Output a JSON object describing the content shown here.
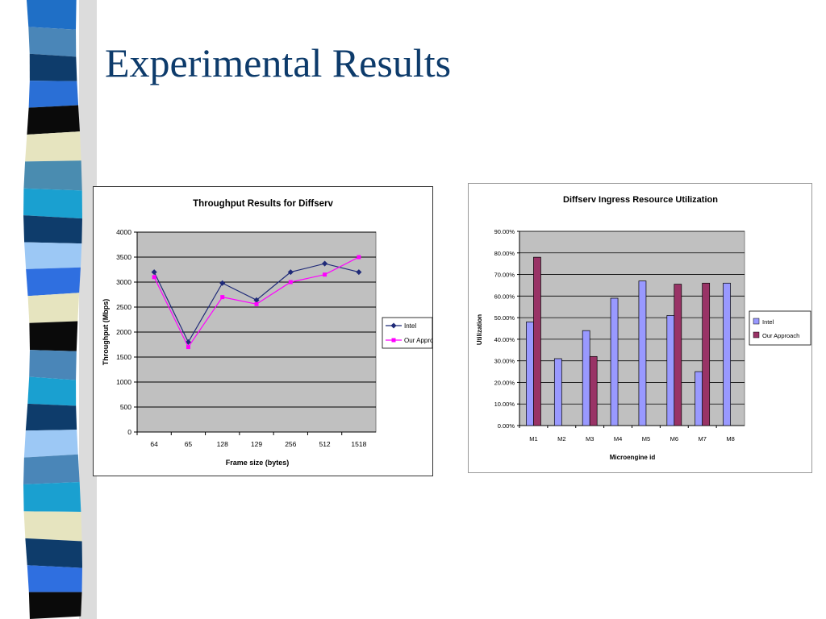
{
  "slide": {
    "title": "Experimental Results"
  },
  "stripe_colors": [
    "#1f6fc6",
    "#4a86b8",
    "#0e3c6b",
    "#2a6fd6",
    "#0a0a0a",
    "#e6e4bf",
    "#4a8cb0",
    "#1aa0d0",
    "#0e3c6b",
    "#9cc8f5",
    "#2f6fe0",
    "#e6e4bf",
    "#0a0a0a",
    "#4a86b8",
    "#1aa0d0",
    "#0e3c6b",
    "#9cc8f5",
    "#4a86b8",
    "#1aa0d0",
    "#e6e4bf",
    "#0e3c6b",
    "#2f6fe0",
    "#0a0a0a"
  ],
  "chart_data": [
    {
      "type": "line",
      "title": "Throughput Results for Diffserv",
      "xlabel": "Frame size (bytes)",
      "ylabel": "Throughput (Mbps)",
      "categories": [
        "64",
        "65",
        "128",
        "129",
        "256",
        "512",
        "1518"
      ],
      "ylim": [
        0,
        4000
      ],
      "yticks": [
        0,
        500,
        1000,
        1500,
        2000,
        2500,
        3000,
        3500,
        4000
      ],
      "grid": true,
      "legend_position": "right",
      "series": [
        {
          "name": "Intel",
          "values": [
            3200,
            1800,
            2980,
            2640,
            3200,
            3370,
            3200
          ],
          "color": "#1f2a78",
          "marker": "diamond"
        },
        {
          "name": "Our Approach",
          "values": [
            3100,
            1700,
            2700,
            2560,
            3000,
            3150,
            3500
          ],
          "color": "#ff00ff",
          "marker": "square"
        }
      ]
    },
    {
      "type": "bar",
      "title": "Diffserv Ingress Resource Utilization",
      "xlabel": "Microengine id",
      "ylabel": "Utilization",
      "categories": [
        "M1",
        "M2",
        "M3",
        "M4",
        "M5",
        "M6",
        "M7",
        "M8"
      ],
      "ylim": [
        0,
        90
      ],
      "yticks": [
        "0.00%",
        "10.00%",
        "20.00%",
        "30.00%",
        "40.00%",
        "50.00%",
        "60.00%",
        "70.00%",
        "80.00%",
        "90.00%"
      ],
      "grid": true,
      "legend_position": "right",
      "series": [
        {
          "name": "Intel",
          "values": [
            48,
            31,
            44,
            59,
            67,
            51,
            25,
            66
          ],
          "color": "#9999ff"
        },
        {
          "name": "Our Approach",
          "values": [
            78,
            0,
            32,
            0,
            0,
            65.5,
            66,
            0
          ],
          "color": "#993366"
        }
      ]
    }
  ]
}
